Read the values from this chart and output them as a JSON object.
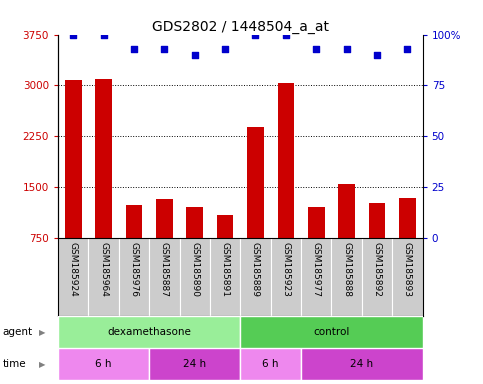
{
  "title": "GDS2802 / 1448504_a_at",
  "samples": [
    "GSM185924",
    "GSM185964",
    "GSM185976",
    "GSM185887",
    "GSM185890",
    "GSM185891",
    "GSM185889",
    "GSM185923",
    "GSM185977",
    "GSM185888",
    "GSM185892",
    "GSM185893"
  ],
  "bar_values": [
    3080,
    3090,
    1230,
    1320,
    1210,
    1090,
    2380,
    3040,
    1200,
    1540,
    1260,
    1340
  ],
  "percentile_values": [
    100,
    100,
    93,
    93,
    90,
    93,
    100,
    100,
    93,
    93,
    90,
    93
  ],
  "ymin": 750,
  "ymax": 3750,
  "yticks": [
    750,
    1500,
    2250,
    3000,
    3750
  ],
  "ytick_labels": [
    "750",
    "1500",
    "2250",
    "3000",
    "3750"
  ],
  "right_yticks": [
    0,
    25,
    50,
    75,
    100
  ],
  "right_ytick_labels": [
    "0",
    "25",
    "50",
    "75",
    "100%"
  ],
  "bar_color": "#cc0000",
  "percentile_color": "#0000cc",
  "grid_color": "#000000",
  "agent_row": [
    {
      "label": "dexamethasone",
      "start": 0,
      "end": 6,
      "color": "#99ee99"
    },
    {
      "label": "control",
      "start": 6,
      "end": 12,
      "color": "#55cc55"
    }
  ],
  "time_row": [
    {
      "label": "6 h",
      "start": 0,
      "end": 3,
      "color": "#ee88ee"
    },
    {
      "label": "24 h",
      "start": 3,
      "end": 6,
      "color": "#cc44cc"
    },
    {
      "label": "6 h",
      "start": 6,
      "end": 8,
      "color": "#ee88ee"
    },
    {
      "label": "24 h",
      "start": 8,
      "end": 12,
      "color": "#cc44cc"
    }
  ],
  "agent_label": "agent",
  "time_label": "time",
  "legend_count_color": "#cc0000",
  "legend_percentile_color": "#0000cc",
  "sample_area_bg": "#bbbbbb",
  "cell_bg": "#cccccc",
  "fig_bg": "#ffffff",
  "title_fontsize": 10,
  "tick_fontsize": 7.5,
  "label_fontsize": 7.5,
  "sample_fontsize": 6.5,
  "legend_fontsize": 7,
  "row_label_fontsize": 7.5
}
